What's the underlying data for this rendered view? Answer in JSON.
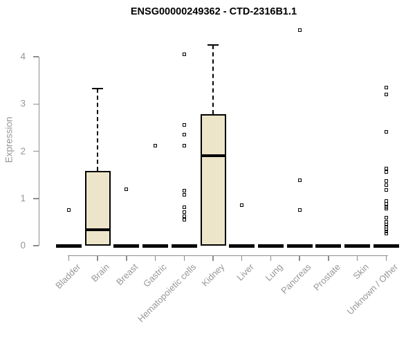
{
  "chart_data": {
    "type": "boxplot",
    "title": "ENSG00000249362 - CTD-2316B1.1",
    "xlabel": "",
    "ylabel": "Expression",
    "ylim": [
      0,
      4.75
    ],
    "yticks": [
      0,
      1,
      2,
      3,
      4
    ],
    "grid": false,
    "legend": false,
    "x_label_rotation": 45,
    "categories": [
      "Bladder",
      "Brain",
      "Breast",
      "Gastric",
      "Hematopoietic cells",
      "Kidney",
      "Liver",
      "Lung",
      "Pancreas",
      "Prostate",
      "Skin",
      "Unknown / Other"
    ],
    "boxes": [
      {
        "category": "Bladder",
        "q1": 0,
        "median": 0,
        "q3": 0,
        "whisker_low": 0,
        "whisker_high": 0,
        "outliers": [
          0.75
        ]
      },
      {
        "category": "Brain",
        "q1": 0,
        "median": 0.34,
        "q3": 1.58,
        "whisker_low": 0,
        "whisker_high": 3.33,
        "outliers": []
      },
      {
        "category": "Breast",
        "q1": 0,
        "median": 0,
        "q3": 0,
        "whisker_low": 0,
        "whisker_high": 0,
        "outliers": [
          1.2
        ]
      },
      {
        "category": "Gastric",
        "q1": 0,
        "median": 0,
        "q3": 0,
        "whisker_low": 0,
        "whisker_high": 0,
        "outliers": [
          2.12
        ]
      },
      {
        "category": "Hematopoietic cells",
        "q1": 0,
        "median": 0,
        "q3": 0,
        "whisker_low": 0,
        "whisker_high": 0,
        "outliers": [
          4.05,
          2.55,
          2.35,
          2.12,
          1.16,
          1.07,
          0.82,
          0.71,
          0.62,
          0.55
        ]
      },
      {
        "category": "Kidney",
        "q1": 0,
        "median": 1.9,
        "q3": 2.79,
        "whisker_low": 0,
        "whisker_high": 4.25,
        "outliers": []
      },
      {
        "category": "Liver",
        "q1": 0,
        "median": 0,
        "q3": 0,
        "whisker_low": 0,
        "whisker_high": 0,
        "outliers": [
          0.86
        ]
      },
      {
        "category": "Lung",
        "q1": 0,
        "median": 0,
        "q3": 0,
        "whisker_low": 0,
        "whisker_high": 0,
        "outliers": []
      },
      {
        "category": "Pancreas",
        "q1": 0,
        "median": 0,
        "q3": 0,
        "whisker_low": 0,
        "whisker_high": 0,
        "outliers": [
          4.57,
          1.38,
          0.76
        ]
      },
      {
        "category": "Prostate",
        "q1": 0,
        "median": 0,
        "q3": 0,
        "whisker_low": 0,
        "whisker_high": 0,
        "outliers": []
      },
      {
        "category": "Skin",
        "q1": 0,
        "median": 0,
        "q3": 0,
        "whisker_low": 0,
        "whisker_high": 0,
        "outliers": []
      },
      {
        "category": "Unknown / Other",
        "q1": 0,
        "median": 0,
        "q3": 0,
        "whisker_low": 0,
        "whisker_high": 0,
        "outliers": [
          3.35,
          3.2,
          2.41,
          1.64,
          1.56,
          1.37,
          1.28,
          1.18,
          0.95,
          0.88,
          0.82,
          0.78,
          0.6,
          0.5,
          0.45,
          0.4,
          0.35,
          0.3,
          0.26
        ]
      }
    ],
    "colors": {
      "box_fill": "#ece5c9",
      "box_border": "#000000",
      "median": "#000000",
      "axis": "#8c8c8c",
      "tick_label": "#979797",
      "title": "#000000",
      "background": "#ffffff"
    }
  }
}
